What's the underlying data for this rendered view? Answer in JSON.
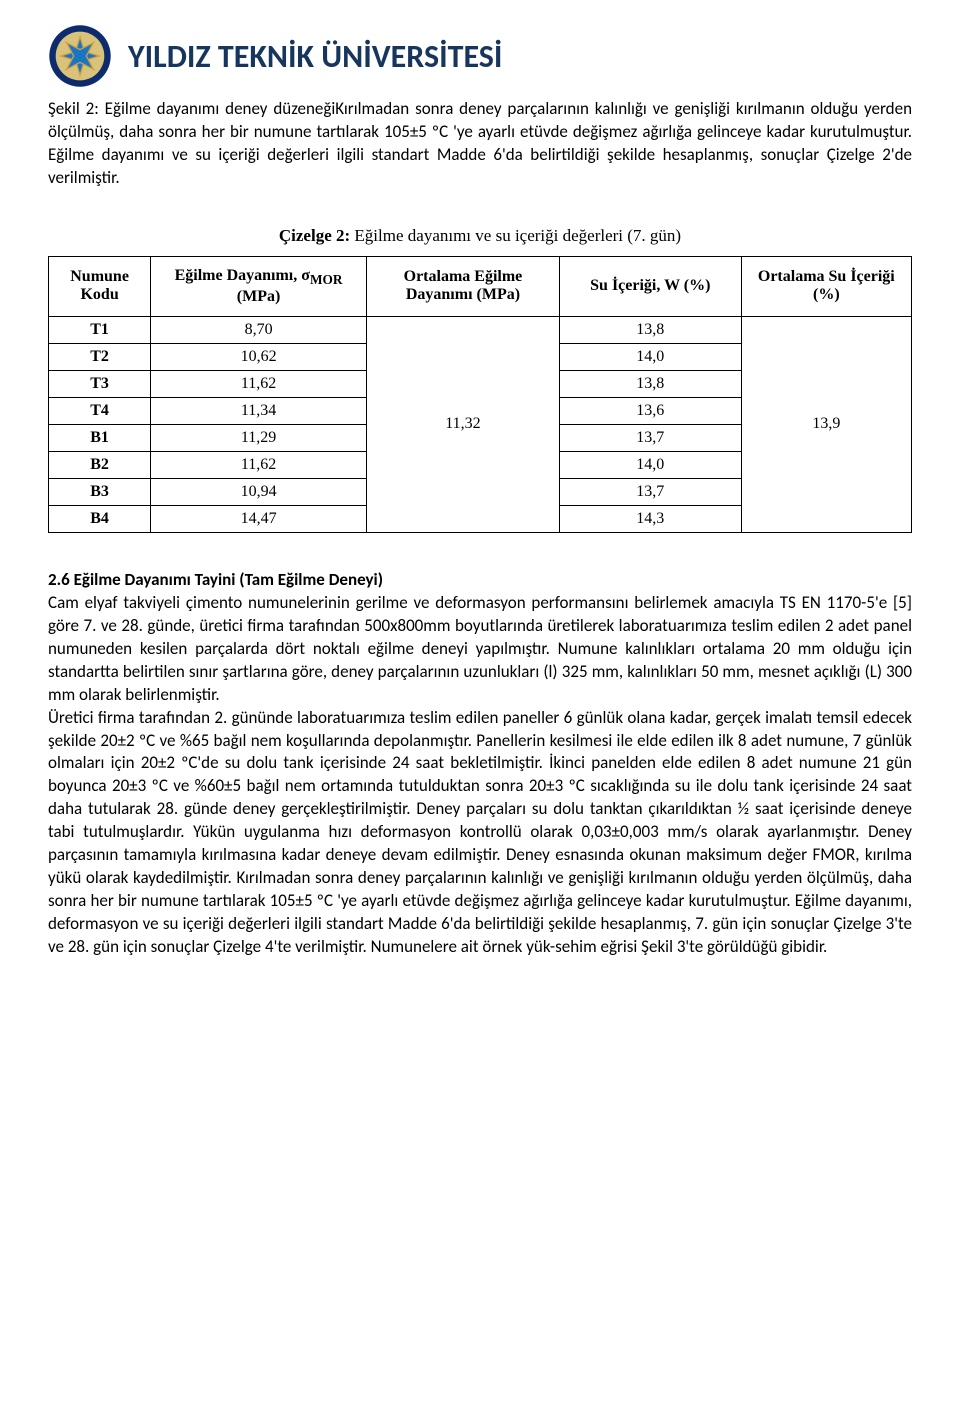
{
  "header": {
    "title": "YILDIZ TEKNİK ÜNİVERSİTESİ",
    "logo_colors": {
      "outer_ring": "#0d2c6e",
      "inner_fill": "#d9c27a",
      "star_fill": "#1976c5",
      "star_stroke": "#d4a040"
    }
  },
  "intro": {
    "para1": "Şekil 2: Eğilme dayanımı deney düzeneğiKırılmadan sonra deney parçalarının kalınlığı ve genişliği kırılmanın olduğu yerden ölçülmüş, daha sonra her bir numune tartılarak 105±5 ºC 'ye ayarlı etüvde değişmez ağırlığa gelinceye kadar kurutulmuştur. Eğilme dayanımı ve su içeriği değerleri ilgili standart Madde 6'da belirtildiği şekilde hesaplanmış, sonuçlar Çizelge 2'de verilmiştir."
  },
  "table": {
    "caption_label": "Çizelge 2:",
    "caption_text": " Eğilme dayanımı ve su içeriği değerleri (7. gün)",
    "headers": {
      "code": "Numune Kodu",
      "mor_line1": "Eğilme Dayanımı, σ",
      "mor_sub": "MOR",
      "mor_line2": "(MPa)",
      "avg_mor": "Ortalama Eğilme Dayanımı (MPa)",
      "w": "Su İçeriği, W (%)",
      "avg_w": "Ortalama Su İçeriği (%)"
    },
    "rows": [
      {
        "code": "T1",
        "mor": "8,70",
        "w": "13,8"
      },
      {
        "code": "T2",
        "mor": "10,62",
        "w": "14,0"
      },
      {
        "code": "T3",
        "mor": "11,62",
        "w": "13,8"
      },
      {
        "code": "T4",
        "mor": "11,34",
        "w": "13,6"
      },
      {
        "code": "B1",
        "mor": "11,29",
        "w": "13,7"
      },
      {
        "code": "B2",
        "mor": "11,62",
        "w": "14,0"
      },
      {
        "code": "B3",
        "mor": "10,94",
        "w": "13,7"
      },
      {
        "code": "B4",
        "mor": "14,47",
        "w": "14,3"
      }
    ],
    "avg_mor": "11,32",
    "avg_w": "13,9"
  },
  "section": {
    "heading": "2.6 Eğilme Dayanımı Tayini (Tam Eğilme Deneyi)",
    "body": "Cam elyaf takviyeli çimento numunelerinin gerilme ve deformasyon performansını belirlemek amacıyla TS EN 1170-5'e [5] göre 7. ve 28. günde, üretici firma tarafından 500x800mm boyutlarında üretilerek laboratuarımıza teslim edilen 2 adet panel numuneden kesilen parçalarda dört noktalı eğilme deneyi yapılmıştır. Numune kalınlıkları ortalama 20 mm olduğu için standartta belirtilen sınır şartlarına göre, deney parçalarının uzunlukları (l) 325 mm, kalınlıkları 50 mm, mesnet açıklığı (L) 300 mm olarak belirlenmiştir.",
    "body2": "Üretici firma tarafından 2. gününde laboratuarımıza teslim edilen paneller 6 günlük olana kadar, gerçek imalatı temsil edecek şekilde 20±2 ºC ve %65 bağıl nem koşullarında depolanmıştır. Panellerin kesilmesi ile elde edilen ilk 8 adet numune, 7 günlük olmaları için 20±2 ºC'de su dolu tank içerisinde 24 saat bekletilmiştir. İkinci panelden elde edilen 8 adet numune 21 gün boyunca 20±3 ºC ve %60±5 bağıl nem ortamında tutulduktan sonra 20±3 ºC sıcaklığında su ile dolu tank içerisinde 24 saat daha tutularak 28. günde deney gerçekleştirilmiştir. Deney parçaları su dolu tanktan çıkarıldıktan ½ saat içerisinde deneye tabi tutulmuşlardır. Yükün uygulanma hızı deformasyon kontrollü olarak 0,03±0,003 mm/s olarak ayarlanmıştır. Deney parçasının tamamıyla kırılmasına kadar deneye devam edilmiştir. Deney esnasında okunan maksimum değer FMOR, kırılma yükü olarak kaydedilmiştir. Kırılmadan sonra deney parçalarının kalınlığı ve genişliği kırılmanın olduğu yerden ölçülmüş, daha sonra her bir numune tartılarak 105±5 ºC 'ye ayarlı etüvde değişmez ağırlığa gelinceye kadar kurutulmuştur. Eğilme dayanımı, deformasyon ve su içeriği değerleri ilgili standart Madde 6'da belirtildiği şekilde hesaplanmış, 7. gün için sonuçlar Çizelge 3'te ve 28. gün için sonuçlar Çizelge 4'te verilmiştir. Numunelere ait örnek yük-sehim eğrisi Şekil 3'te görüldüğü gibidir."
  }
}
